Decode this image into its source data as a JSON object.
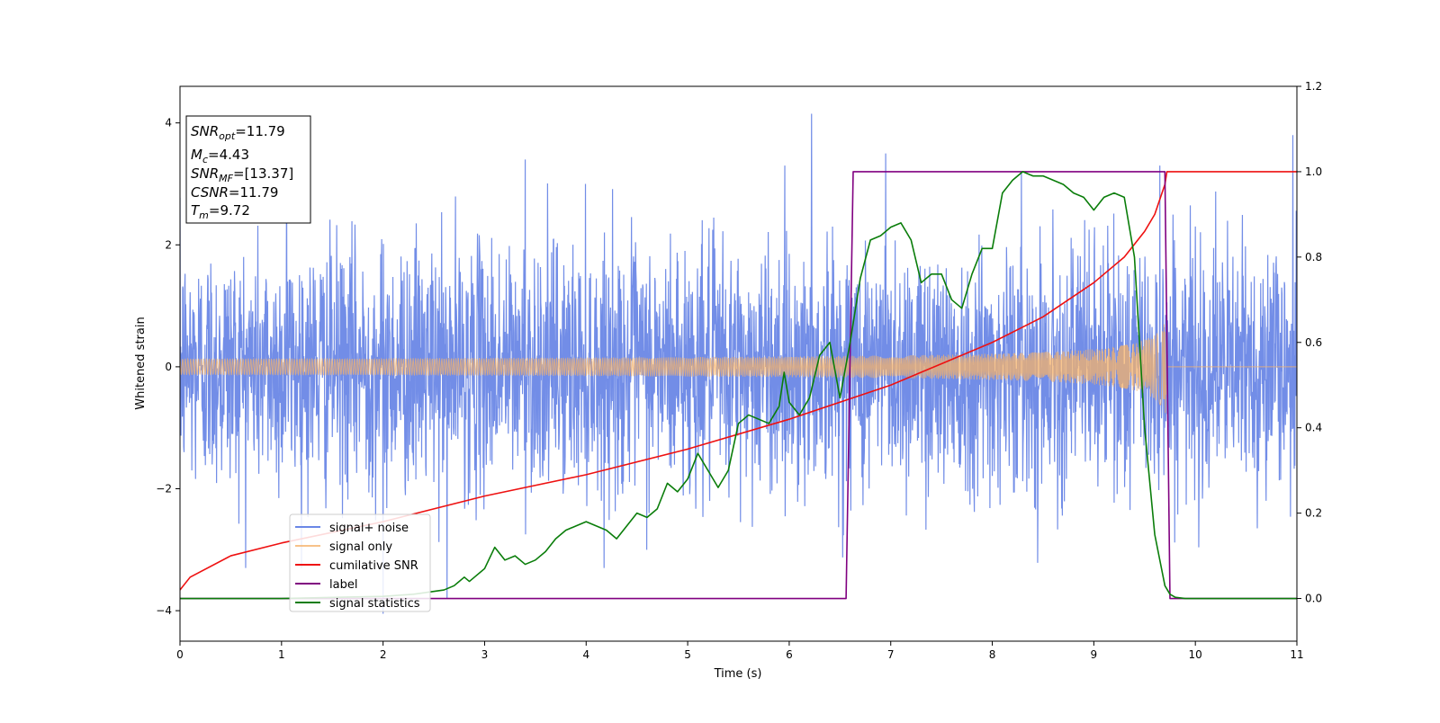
{
  "chart_data": {
    "type": "line",
    "xlabel": "Time (s)",
    "ylabel": "Whitened strain",
    "xlim": [
      0,
      11
    ],
    "ylim_left": [
      -4.5,
      4.6
    ],
    "ylim_right": [
      -0.1,
      1.2
    ],
    "xticks": [
      0,
      1,
      2,
      3,
      4,
      5,
      6,
      7,
      8,
      9,
      10,
      11
    ],
    "yticks_left": [
      -4,
      -2,
      0,
      2,
      4
    ],
    "yticks_right": [
      0.0,
      0.2,
      0.4,
      0.6,
      0.8,
      1.0,
      1.2
    ],
    "grid": false,
    "legend_position": "lower-left",
    "annotation_lines": [
      {
        "base": "SNR",
        "sub": "opt",
        "rest": "=11.79"
      },
      {
        "base": "M",
        "sub": "c",
        "rest": "=4.43"
      },
      {
        "base": "SNR",
        "sub": "MF",
        "rest": "=[13.37]"
      },
      {
        "base": "CSNR",
        "sub": "",
        "rest": "=11.79"
      },
      {
        "base": "T",
        "sub": "m",
        "rest": "=9.72"
      }
    ],
    "series": [
      {
        "name": "signal+ noise",
        "axis": "left",
        "color": "#6a87e6",
        "kind": "noise",
        "noise_sigma": 1.0,
        "t_end": 11,
        "notable_peaks": [
          [
            1.05,
            3.35
          ],
          [
            3.4,
            3.4
          ],
          [
            6.22,
            4.15
          ],
          [
            6.95,
            3.5
          ],
          [
            9.65,
            3.3
          ],
          [
            10.96,
            3.8
          ],
          [
            2.0,
            -4.05
          ],
          [
            2.63,
            -3.8
          ]
        ]
      },
      {
        "name": "signal only",
        "axis": "left",
        "color": "#f5b36b",
        "kind": "chirp",
        "t_merge": 9.72,
        "amplitude_start": 0.08,
        "amplitude_merge": 0.8
      },
      {
        "name": "cumilative SNR",
        "axis": "right",
        "color": "#ee1111",
        "x": [
          0.0,
          0.1,
          0.5,
          1.0,
          2.0,
          3.0,
          4.0,
          5.0,
          6.0,
          7.0,
          7.5,
          8.0,
          8.5,
          9.0,
          9.3,
          9.5,
          9.6,
          9.7,
          9.72,
          11.0
        ],
        "y": [
          0.02,
          0.05,
          0.1,
          0.13,
          0.18,
          0.24,
          0.29,
          0.35,
          0.42,
          0.5,
          0.55,
          0.6,
          0.66,
          0.74,
          0.8,
          0.86,
          0.9,
          0.97,
          1.0,
          1.0
        ]
      },
      {
        "name": "label",
        "axis": "right",
        "color": "#800080",
        "x": [
          0.0,
          6.56,
          6.63,
          9.7,
          9.75,
          11.0
        ],
        "y": [
          0.0,
          0.0,
          1.0,
          1.0,
          0.0,
          0.0
        ]
      },
      {
        "name": "signal statistics",
        "axis": "right",
        "color": "#0a7d0a",
        "x": [
          0.0,
          1.0,
          2.0,
          2.3,
          2.6,
          2.7,
          2.8,
          2.85,
          2.9,
          3.0,
          3.1,
          3.2,
          3.3,
          3.4,
          3.5,
          3.6,
          3.7,
          3.8,
          3.9,
          4.0,
          4.1,
          4.2,
          4.3,
          4.4,
          4.5,
          4.6,
          4.7,
          4.8,
          4.9,
          5.0,
          5.1,
          5.2,
          5.3,
          5.4,
          5.5,
          5.6,
          5.7,
          5.8,
          5.9,
          5.95,
          6.0,
          6.1,
          6.2,
          6.3,
          6.4,
          6.5,
          6.6,
          6.7,
          6.8,
          6.9,
          7.0,
          7.1,
          7.2,
          7.3,
          7.4,
          7.5,
          7.6,
          7.7,
          7.8,
          7.9,
          8.0,
          8.1,
          8.2,
          8.3,
          8.4,
          8.5,
          8.6,
          8.7,
          8.8,
          8.9,
          9.0,
          9.1,
          9.2,
          9.3,
          9.4,
          9.5,
          9.6,
          9.7,
          9.75,
          9.8,
          9.9,
          10.0,
          10.5,
          11.0
        ],
        "y": [
          0.0,
          0.0,
          0.005,
          0.01,
          0.02,
          0.03,
          0.05,
          0.04,
          0.05,
          0.07,
          0.12,
          0.09,
          0.1,
          0.08,
          0.09,
          0.11,
          0.14,
          0.16,
          0.17,
          0.18,
          0.17,
          0.16,
          0.14,
          0.17,
          0.2,
          0.19,
          0.21,
          0.27,
          0.25,
          0.28,
          0.34,
          0.3,
          0.26,
          0.3,
          0.41,
          0.43,
          0.42,
          0.41,
          0.45,
          0.53,
          0.46,
          0.43,
          0.47,
          0.57,
          0.6,
          0.47,
          0.6,
          0.75,
          0.84,
          0.85,
          0.87,
          0.88,
          0.84,
          0.74,
          0.76,
          0.76,
          0.7,
          0.68,
          0.76,
          0.82,
          0.82,
          0.95,
          0.98,
          1.0,
          0.99,
          0.99,
          0.98,
          0.97,
          0.95,
          0.94,
          0.91,
          0.94,
          0.95,
          0.94,
          0.8,
          0.4,
          0.15,
          0.03,
          0.01,
          0.003,
          0.0,
          0.0,
          0.0,
          0.0
        ]
      }
    ]
  }
}
